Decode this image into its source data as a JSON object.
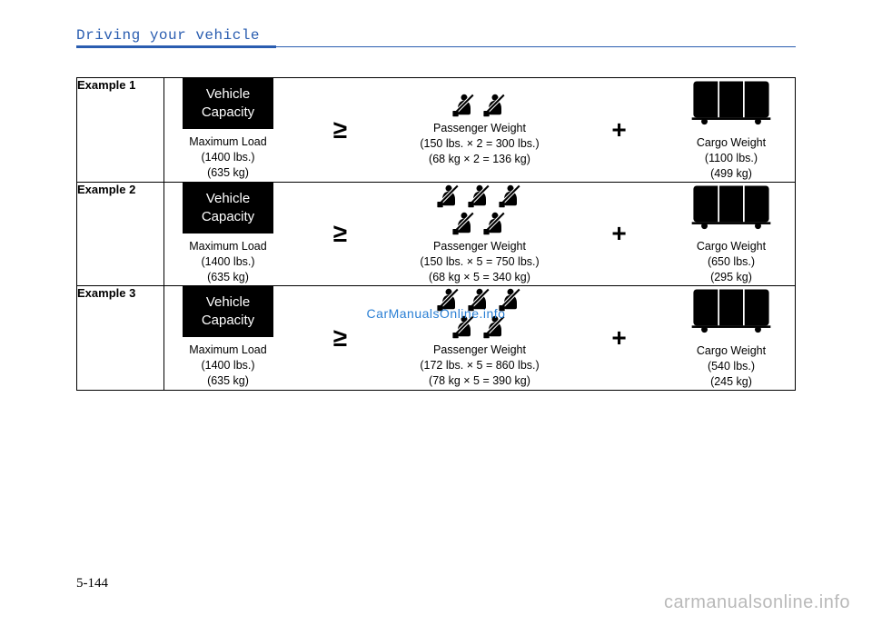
{
  "header": {
    "title": "Driving your vehicle"
  },
  "page_number": "5-144",
  "watermark_center": "CarManualsOnline.info",
  "watermark_bottom": "carmanualsonline.info",
  "vehicle_box": {
    "line1": "Vehicle",
    "line2": "Capacity"
  },
  "rows": [
    {
      "label": "Example 1",
      "passenger_count": 2,
      "max_load": {
        "l1": "Maximum Load",
        "l2": "(1400 lbs.)",
        "l3": "(635 kg)"
      },
      "passenger": {
        "l1": "Passenger Weight",
        "l2": "(150 lbs. × 2 = 300 lbs.)",
        "l3": "(68 kg × 2 = 136 kg)"
      },
      "cargo": {
        "l1": "Cargo Weight",
        "l2": "(1100 lbs.)",
        "l3": "(499 kg)"
      }
    },
    {
      "label": "Example 2",
      "passenger_count": 5,
      "max_load": {
        "l1": "Maximum Load",
        "l2": "(1400 lbs.)",
        "l3": "(635 kg)"
      },
      "passenger": {
        "l1": "Passenger Weight",
        "l2": "(150 lbs. × 5 = 750 lbs.)",
        "l3": "(68 kg × 5 = 340 kg)"
      },
      "cargo": {
        "l1": "Cargo Weight",
        "l2": "(650 lbs.)",
        "l3": "(295 kg)"
      }
    },
    {
      "label": "Example 3",
      "passenger_count": 5,
      "max_load": {
        "l1": "Maximum Load",
        "l2": "(1400 lbs.)",
        "l3": "(635 kg)"
      },
      "passenger": {
        "l1": "Passenger Weight",
        "l2": "(172 lbs. × 5 = 860 lbs.)",
        "l3": "(78 kg × 5 = 390 kg)"
      },
      "cargo": {
        "l1": "Cargo Weight",
        "l2": "(540 lbs.)",
        "l3": "(245 kg)"
      }
    }
  ]
}
